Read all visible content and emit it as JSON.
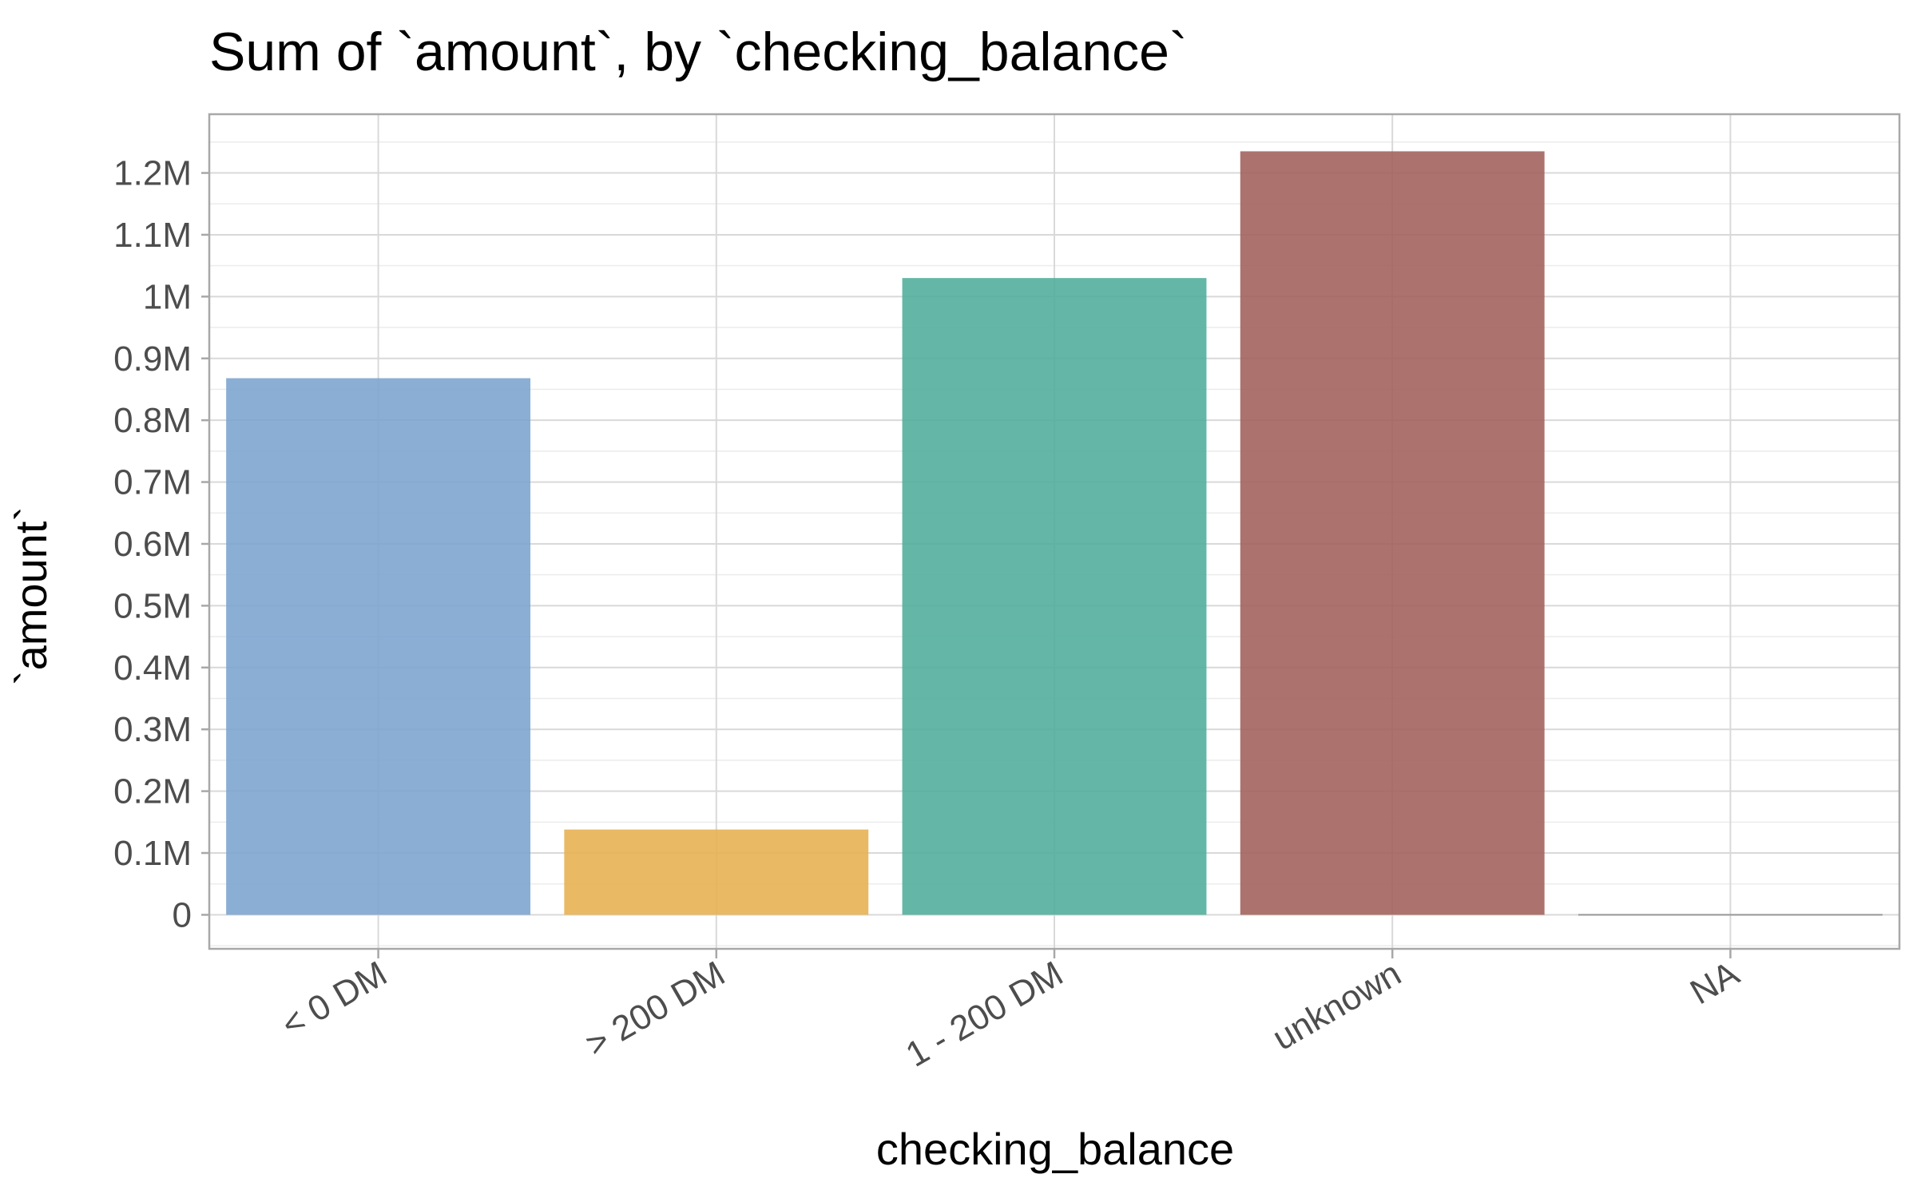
{
  "chart_data": {
    "type": "bar",
    "title": "Sum of `amount`, by `checking_balance`",
    "xlabel": "checking_balance",
    "ylabel": "`amount`",
    "categories": [
      "< 0 DM",
      "> 200 DM",
      "1 - 200 DM",
      "unknown",
      "NA"
    ],
    "values": [
      868000,
      138000,
      1030000,
      1235000,
      0
    ],
    "colors": [
      "#7ba3cf",
      "#e6b04d",
      "#4fad9a",
      "#a0605a",
      "#999999"
    ],
    "ylim": [
      -55000,
      1295000
    ],
    "y_ticks": [
      0,
      100000,
      200000,
      300000,
      400000,
      500000,
      600000,
      700000,
      800000,
      900000,
      1000000,
      1100000,
      1200000
    ],
    "y_tick_labels": [
      "0",
      "0.1M",
      "0.2M",
      "0.3M",
      "0.4M",
      "0.5M",
      "0.6M",
      "0.7M",
      "0.8M",
      "0.9M",
      "1M",
      "1.1M",
      "1.2M"
    ],
    "grid": true,
    "legend": "none"
  }
}
